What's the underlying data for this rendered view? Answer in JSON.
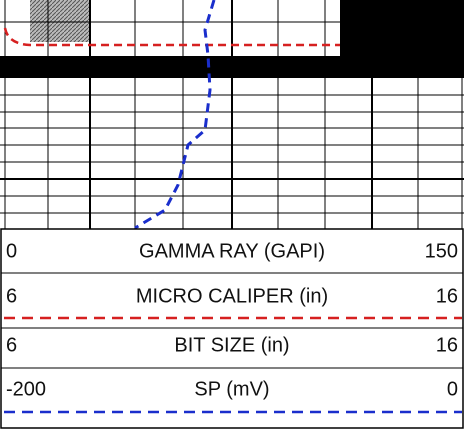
{
  "tracks": [
    {
      "name": "GAMMA RAY (GAPI)",
      "left": 0,
      "right": 150
    },
    {
      "name": "MICRO CALIPER (in)",
      "left": 6,
      "right": 16
    },
    {
      "name": "BIT SIZE (in)",
      "left": 6,
      "right": 16
    },
    {
      "name": "SP (mV)",
      "left": -200,
      "right": 0
    }
  ]
}
